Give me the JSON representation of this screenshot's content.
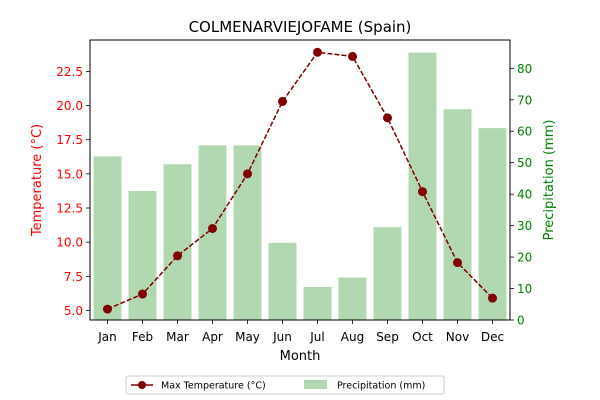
{
  "chart_data": {
    "type": "bar+line",
    "title": "COLMENARVIEJOFAME (Spain)",
    "xlabel": "Month",
    "categories": [
      "Jan",
      "Feb",
      "Mar",
      "Apr",
      "May",
      "Jun",
      "Jul",
      "Aug",
      "Sep",
      "Oct",
      "Nov",
      "Dec"
    ],
    "left_axis": {
      "label": "Temperature (°C)",
      "color": "#ff0000",
      "ylim": [
        4.3,
        24.8
      ],
      "ticks": [
        5.0,
        7.5,
        10.0,
        12.5,
        15.0,
        17.5,
        20.0,
        22.5
      ],
      "tick_labels": [
        "5.0",
        "7.5",
        "10.0",
        "12.5",
        "15.0",
        "17.5",
        "20.0",
        "22.5"
      ]
    },
    "right_axis": {
      "label": "Precipitation (mm)",
      "color": "#008000",
      "ylim": [
        0,
        89
      ],
      "ticks": [
        0,
        10,
        20,
        30,
        40,
        50,
        60,
        70,
        80
      ],
      "tick_labels": [
        "0",
        "10",
        "20",
        "30",
        "40",
        "50",
        "60",
        "70",
        "80"
      ]
    },
    "series": [
      {
        "name": "Max Temperature (°C)",
        "type": "line",
        "axis": "left",
        "color": "#800000",
        "style": "dashed",
        "marker": "circle",
        "values": [
          5.1,
          6.2,
          9.0,
          11.0,
          15.0,
          20.3,
          23.9,
          23.6,
          19.1,
          13.7,
          8.5,
          5.9
        ]
      },
      {
        "name": "Precipitation (mm)",
        "type": "bar",
        "axis": "right",
        "color": "#b2d8b2",
        "values": [
          52,
          41,
          49.5,
          55.5,
          55.5,
          24.5,
          10.5,
          13.5,
          29.5,
          85,
          67,
          61
        ]
      }
    ],
    "legend": {
      "placement": "bottom-center",
      "items": [
        "Max Temperature (°C)",
        "Precipitation (mm)"
      ]
    },
    "grid": false
  }
}
